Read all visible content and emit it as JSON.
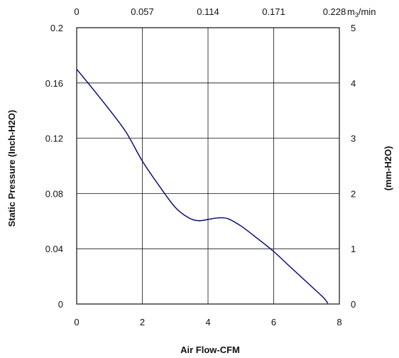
{
  "chart_data": {
    "type": "line",
    "title": "",
    "xlabel": "Air Flow-CFM",
    "ylabel": "Static Pressure (Inch-H2O)",
    "ylabel_right": "(mm-H2O)",
    "x2label_unit": "m3/min",
    "xlim": [
      0,
      8
    ],
    "ylim": [
      0,
      0.2
    ],
    "y2lim": [
      0,
      5
    ],
    "grid": true,
    "legend": "none",
    "x_ticks": [
      "0",
      "2",
      "4",
      "6",
      "8"
    ],
    "y_ticks": [
      "0",
      "0.04",
      "0.08",
      "0.12",
      "0.16",
      "0.2"
    ],
    "x2_ticks": [
      "0",
      "0.057",
      "0.114",
      "0.171",
      "0.228"
    ],
    "y2_ticks": [
      "0",
      "1",
      "2",
      "3",
      "4",
      "5"
    ],
    "series": [
      {
        "color": "#00007a",
        "x": [
          0,
          0.5,
          1.0,
          1.5,
          2.0,
          2.5,
          3.0,
          3.4,
          3.7,
          4.0,
          4.3,
          4.6,
          5.0,
          5.5,
          6.0,
          6.5,
          7.0,
          7.5,
          7.65
        ],
        "y": [
          0.17,
          0.1555,
          0.1405,
          0.1245,
          0.1035,
          0.086,
          0.07,
          0.0625,
          0.0603,
          0.0612,
          0.0623,
          0.0618,
          0.0565,
          0.0475,
          0.038,
          0.027,
          0.016,
          0.005,
          0.0005
        ]
      }
    ]
  }
}
